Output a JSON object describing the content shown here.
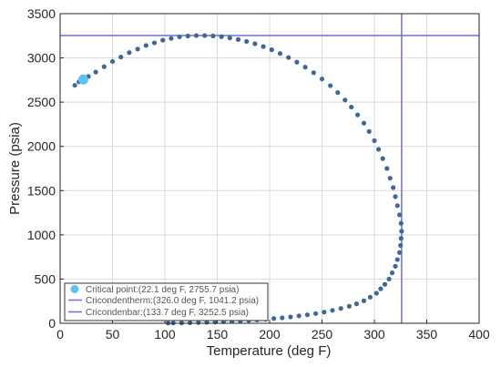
{
  "chart_data": {
    "type": "scatter",
    "title": "",
    "xlabel": "Temperature (deg F)",
    "ylabel": "Pressure (psia)",
    "xlim": [
      0,
      400
    ],
    "ylim": [
      0,
      3500
    ],
    "xticks": [
      0,
      50,
      100,
      150,
      200,
      250,
      300,
      350,
      400
    ],
    "yticks": [
      0,
      500,
      1000,
      1500,
      2000,
      2500,
      3000,
      3500
    ],
    "grid": true,
    "legend_position": "bottom-left",
    "colors": {
      "envelope": "#3f6894",
      "critical": "#5ec2f2",
      "reference_lines": "#6f6fd6",
      "axes": "#262626"
    },
    "series": [
      {
        "points": [
          [
            14,
            2690
          ],
          [
            18,
            2730
          ],
          [
            27,
            2790
          ],
          [
            34,
            2840
          ],
          [
            42,
            2900
          ],
          [
            50,
            2960
          ],
          [
            58,
            3010
          ],
          [
            66,
            3060
          ],
          [
            74,
            3100
          ],
          [
            82,
            3140
          ],
          [
            90,
            3170
          ],
          [
            98,
            3200
          ],
          [
            106,
            3220
          ],
          [
            114,
            3238
          ],
          [
            122,
            3248
          ],
          [
            130,
            3252
          ],
          [
            138,
            3252
          ],
          [
            146,
            3248
          ],
          [
            154,
            3240
          ],
          [
            162,
            3226
          ],
          [
            170,
            3208
          ],
          [
            178,
            3186
          ],
          [
            186,
            3160
          ],
          [
            194,
            3128
          ],
          [
            202,
            3092
          ],
          [
            210,
            3050
          ],
          [
            218,
            3004
          ],
          [
            226,
            2952
          ],
          [
            234,
            2895
          ],
          [
            242,
            2832
          ],
          [
            250,
            2762
          ],
          [
            258,
            2686
          ],
          [
            265,
            2608
          ],
          [
            272,
            2524
          ],
          [
            278,
            2444
          ],
          [
            284,
            2356
          ],
          [
            290,
            2262
          ],
          [
            295,
            2168
          ],
          [
            300,
            2064
          ],
          [
            304,
            1966
          ],
          [
            308,
            1862
          ],
          [
            312,
            1750
          ],
          [
            315,
            1640
          ],
          [
            318,
            1534
          ],
          [
            320,
            1432
          ],
          [
            322,
            1330
          ],
          [
            324,
            1226
          ],
          [
            325.5,
            1130
          ],
          [
            326,
            1041
          ],
          [
            325.5,
            960
          ],
          [
            325,
            880
          ],
          [
            324,
            800
          ],
          [
            322,
            720
          ],
          [
            320,
            645
          ],
          [
            317,
            570
          ],
          [
            314,
            500
          ],
          [
            310,
            440
          ],
          [
            306,
            390
          ],
          [
            302,
            340
          ],
          [
            296,
            295
          ],
          [
            290,
            255
          ],
          [
            283,
            220
          ],
          [
            276,
            192
          ],
          [
            268,
            168
          ],
          [
            260,
            146
          ],
          [
            252,
            126
          ],
          [
            244,
            110
          ],
          [
            236,
            96
          ],
          [
            228,
            84
          ],
          [
            220,
            72
          ],
          [
            212,
            62
          ],
          [
            204,
            54
          ],
          [
            196,
            46
          ],
          [
            188,
            38
          ],
          [
            180,
            32
          ],
          [
            172,
            27
          ],
          [
            164,
            22
          ],
          [
            156,
            18
          ],
          [
            148,
            14
          ],
          [
            140,
            11
          ],
          [
            132,
            8
          ],
          [
            124,
            6
          ],
          [
            116,
            4
          ],
          [
            108,
            3
          ],
          [
            103,
            2
          ]
        ]
      }
    ],
    "critical_point": {
      "x": 22.1,
      "y": 2755.7
    },
    "cricondentherm": {
      "x": 326.0,
      "y": 1041.2
    },
    "cricondenbar": {
      "x": 133.7,
      "y": 3252.5
    },
    "legend": [
      {
        "label": "Critical point:(22.1 deg F, 2755.7 psia)",
        "marker": "dot"
      },
      {
        "label": "Cricondentherm:(326.0 deg F, 1041.2 psia)",
        "marker": "line"
      },
      {
        "label": "Cricondenbar:(133.7 deg F, 3252.5 psia)",
        "marker": "line"
      }
    ]
  }
}
